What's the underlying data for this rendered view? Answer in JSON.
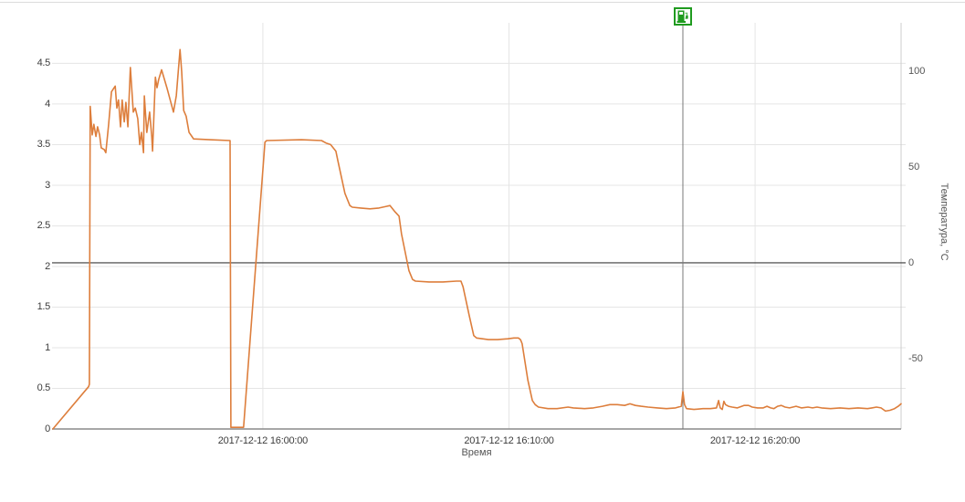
{
  "chart_data": {
    "type": "line",
    "title": "",
    "xlabel": "Время",
    "y_right_label": "Температура, °C",
    "date": "2017-12-12",
    "grid": true,
    "legend": "none",
    "x_axis": {
      "ticks": [
        "2017-12-12 16:00:00",
        "2017-12-12 16:10:00",
        "2017-12-12 16:20:00"
      ],
      "range": [
        "15:51:26",
        "16:25:56"
      ]
    },
    "y_left_axis": {
      "ticks": [
        "0",
        "0.5",
        "1",
        "1.5",
        "2",
        "2.5",
        "3",
        "3.5",
        "4",
        "4.5"
      ],
      "range": [
        0,
        5.19
      ]
    },
    "y_right_axis": {
      "ticks": [
        "100",
        "50",
        "0",
        "-50"
      ],
      "range": [
        -86.7,
        133.3
      ]
    },
    "series": [
      {
        "id": "fuel-level",
        "axis": "left",
        "color": "#dd7e3c",
        "points": [
          [
            "15:51:28",
            0
          ],
          [
            "15:52:55",
            0.52
          ],
          [
            "15:52:57",
            0.55
          ],
          [
            "15:52:59",
            3.97
          ],
          [
            "15:53:04",
            3.62
          ],
          [
            "15:53:08",
            3.75
          ],
          [
            "15:53:13",
            3.6
          ],
          [
            "15:53:17",
            3.72
          ],
          [
            "15:53:22",
            3.62
          ],
          [
            "15:53:26",
            3.46
          ],
          [
            "15:53:33",
            3.44
          ],
          [
            "15:53:37",
            3.4
          ],
          [
            "15:53:44",
            3.75
          ],
          [
            "15:53:51",
            4.15
          ],
          [
            "15:54:00",
            4.22
          ],
          [
            "15:54:04",
            3.95
          ],
          [
            "15:54:08",
            4.05
          ],
          [
            "15:54:13",
            3.72
          ],
          [
            "15:54:17",
            4.05
          ],
          [
            "15:54:22",
            3.78
          ],
          [
            "15:54:26",
            4.02
          ],
          [
            "15:54:31",
            3.72
          ],
          [
            "15:54:37",
            4.45
          ],
          [
            "15:54:44",
            3.9
          ],
          [
            "15:54:49",
            3.95
          ],
          [
            "15:54:55",
            3.82
          ],
          [
            "15:55:00",
            3.5
          ],
          [
            "15:55:04",
            3.65
          ],
          [
            "15:55:09",
            3.4
          ],
          [
            "15:55:11",
            4.1
          ],
          [
            "15:55:17",
            3.65
          ],
          [
            "15:55:24",
            3.9
          ],
          [
            "15:55:29",
            3.6
          ],
          [
            "15:55:31",
            3.42
          ],
          [
            "15:55:38",
            4.33
          ],
          [
            "15:55:42",
            4.2
          ],
          [
            "15:55:46",
            4.3
          ],
          [
            "15:55:53",
            4.42
          ],
          [
            "15:56:06",
            4.2
          ],
          [
            "15:56:22",
            3.9
          ],
          [
            "15:56:29",
            4.1
          ],
          [
            "15:56:38",
            4.67
          ],
          [
            "15:56:42",
            4.4
          ],
          [
            "15:56:47",
            3.92
          ],
          [
            "15:56:53",
            3.85
          ],
          [
            "15:57:00",
            3.65
          ],
          [
            "15:57:07",
            3.6
          ],
          [
            "15:57:11",
            3.57
          ],
          [
            "15:57:51",
            3.56
          ],
          [
            "15:58:40",
            3.55
          ],
          [
            "15:58:42",
            0.02
          ],
          [
            "15:59:13",
            0.02
          ],
          [
            "16:00:05",
            3.53
          ],
          [
            "16:00:09",
            3.55
          ],
          [
            "16:01:34",
            3.56
          ],
          [
            "16:02:23",
            3.55
          ],
          [
            "16:02:34",
            3.52
          ],
          [
            "16:02:45",
            3.5
          ],
          [
            "16:02:58",
            3.42
          ],
          [
            "16:03:03",
            3.3
          ],
          [
            "16:03:20",
            2.9
          ],
          [
            "16:03:32",
            2.75
          ],
          [
            "16:03:38",
            2.73
          ],
          [
            "16:03:58",
            2.72
          ],
          [
            "16:04:21",
            2.71
          ],
          [
            "16:04:43",
            2.72
          ],
          [
            "16:05:01",
            2.74
          ],
          [
            "16:05:10",
            2.75
          ],
          [
            "16:05:21",
            2.68
          ],
          [
            "16:05:32",
            2.62
          ],
          [
            "16:05:38",
            2.4
          ],
          [
            "16:05:56",
            1.95
          ],
          [
            "16:06:05",
            1.84
          ],
          [
            "16:06:12",
            1.82
          ],
          [
            "16:06:45",
            1.81
          ],
          [
            "16:07:19",
            1.81
          ],
          [
            "16:07:52",
            1.82
          ],
          [
            "16:08:03",
            1.82
          ],
          [
            "16:08:08",
            1.75
          ],
          [
            "16:08:23",
            1.4
          ],
          [
            "16:08:34",
            1.15
          ],
          [
            "16:08:41",
            1.12
          ],
          [
            "16:09:10",
            1.1
          ],
          [
            "16:09:32",
            1.1
          ],
          [
            "16:09:57",
            1.11
          ],
          [
            "16:10:12",
            1.12
          ],
          [
            "16:10:23",
            1.12
          ],
          [
            "16:10:28",
            1.1
          ],
          [
            "16:10:32",
            1.05
          ],
          [
            "16:10:46",
            0.6
          ],
          [
            "16:10:57",
            0.35
          ],
          [
            "16:11:04",
            0.3
          ],
          [
            "16:11:12",
            0.27
          ],
          [
            "16:11:35",
            0.25
          ],
          [
            "16:11:57",
            0.25
          ],
          [
            "16:12:24",
            0.27
          ],
          [
            "16:12:37",
            0.26
          ],
          [
            "16:13:04",
            0.25
          ],
          [
            "16:13:26",
            0.26
          ],
          [
            "16:13:48",
            0.28
          ],
          [
            "16:14:06",
            0.3
          ],
          [
            "16:14:24",
            0.3
          ],
          [
            "16:14:42",
            0.29
          ],
          [
            "16:14:55",
            0.31
          ],
          [
            "16:15:08",
            0.29
          ],
          [
            "16:15:22",
            0.28
          ],
          [
            "16:15:39",
            0.27
          ],
          [
            "16:16:02",
            0.26
          ],
          [
            "16:16:24",
            0.25
          ],
          [
            "16:16:46",
            0.26
          ],
          [
            "16:17:00",
            0.28
          ],
          [
            "16:17:04",
            0.46
          ],
          [
            "16:17:08",
            0.3
          ],
          [
            "16:17:13",
            0.25
          ],
          [
            "16:17:31",
            0.24
          ],
          [
            "16:17:53",
            0.25
          ],
          [
            "16:18:11",
            0.25
          ],
          [
            "16:18:26",
            0.26
          ],
          [
            "16:18:31",
            0.35
          ],
          [
            "16:18:35",
            0.26
          ],
          [
            "16:18:40",
            0.24
          ],
          [
            "16:18:44",
            0.34
          ],
          [
            "16:18:48",
            0.3
          ],
          [
            "16:18:55",
            0.28
          ],
          [
            "16:19:04",
            0.27
          ],
          [
            "16:19:17",
            0.26
          ],
          [
            "16:19:33",
            0.29
          ],
          [
            "16:19:44",
            0.29
          ],
          [
            "16:19:53",
            0.27
          ],
          [
            "16:20:06",
            0.26
          ],
          [
            "16:20:20",
            0.26
          ],
          [
            "16:20:29",
            0.28
          ],
          [
            "16:20:38",
            0.26
          ],
          [
            "16:20:46",
            0.25
          ],
          [
            "16:20:55",
            0.28
          ],
          [
            "16:21:04",
            0.29
          ],
          [
            "16:21:13",
            0.27
          ],
          [
            "16:21:24",
            0.26
          ],
          [
            "16:21:40",
            0.28
          ],
          [
            "16:21:53",
            0.26
          ],
          [
            "16:22:09",
            0.27
          ],
          [
            "16:22:20",
            0.26
          ],
          [
            "16:22:31",
            0.27
          ],
          [
            "16:22:42",
            0.26
          ],
          [
            "16:23:04",
            0.25
          ],
          [
            "16:23:27",
            0.26
          ],
          [
            "16:23:49",
            0.25
          ],
          [
            "16:24:11",
            0.26
          ],
          [
            "16:24:34",
            0.25
          ],
          [
            "16:24:45",
            0.26
          ],
          [
            "16:24:56",
            0.27
          ],
          [
            "16:25:07",
            0.26
          ],
          [
            "16:25:18",
            0.22
          ],
          [
            "16:25:29",
            0.23
          ],
          [
            "16:25:40",
            0.25
          ],
          [
            "16:25:49",
            0.28
          ],
          [
            "16:25:56",
            0.31
          ]
        ]
      },
      {
        "id": "temperature",
        "axis": "right",
        "color": "#3a3a3a",
        "points": [
          [
            "15:51:26",
            0
          ],
          [
            "16:25:56",
            0
          ]
        ]
      }
    ],
    "events": [
      {
        "icon": "fuel-pump-icon",
        "time": "16:17:04",
        "color": "#1f9b1f"
      }
    ]
  },
  "colors": {
    "line": "#dd7e3c",
    "grid": "#e5e5e5",
    "axis": "#8a8a8a",
    "right_axis": "#cccccc",
    "zero_line": "#3a3a3a",
    "marker_line": "#787878",
    "event_green": "#1f9b1f"
  }
}
